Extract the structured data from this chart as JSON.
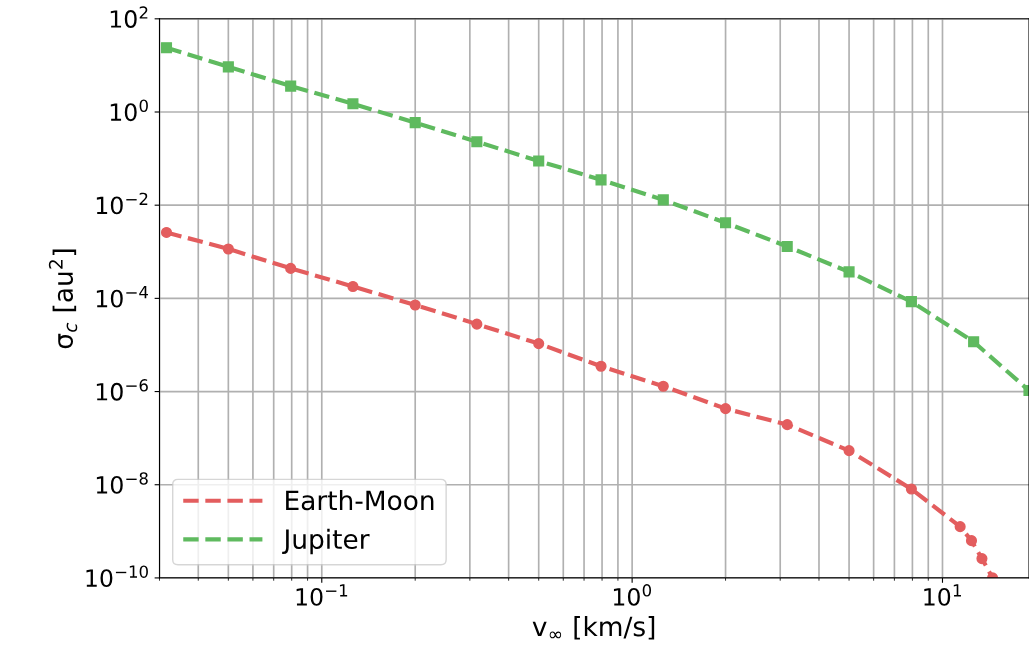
{
  "chart_data": {
    "type": "line",
    "xlabel": "v$_{∞}$ [km/s]",
    "ylabel": "σ$_{c}$ [au$^{2}$]",
    "log": "xy",
    "grid": true,
    "legend": "bottom left",
    "line_style": "dashed",
    "xlim": [
      0.03,
      19
    ],
    "ylim": [
      1e-10,
      100
    ],
    "xticks": [
      {
        "value": 0.1,
        "label": "10$^{−1}$"
      },
      {
        "value": 1,
        "label": "10$^{0}$"
      },
      {
        "value": 10,
        "label": "10$^{1}$"
      }
    ],
    "yticks": [
      {
        "value": 1e-10,
        "label": "10$^{−10}$"
      },
      {
        "value": 1e-08,
        "label": "10$^{−8}$"
      },
      {
        "value": 1e-06,
        "label": "10$^{−6}$"
      },
      {
        "value": 0.0001,
        "label": "10$^{−4}$"
      },
      {
        "value": 0.01,
        "label": "10$^{−2}$"
      },
      {
        "value": 1,
        "label": "10$^{0}$"
      },
      {
        "value": 100,
        "label": "10$^{2}$"
      }
    ],
    "series": [
      {
        "name": "Earth-Moon",
        "color": "#e35d5e",
        "marker": "circle",
        "x": [
          0.0316,
          0.05,
          0.0794,
          0.126,
          0.2,
          0.316,
          0.5,
          0.794,
          1.26,
          2,
          3.16,
          5,
          7.94,
          11.4,
          12.4,
          13.4,
          14.5
        ],
        "values": [
          0.0026,
          0.00115,
          0.00044,
          0.00018,
          7.2e-05,
          2.8e-05,
          1.07e-05,
          3.5e-06,
          1.3e-06,
          4.3e-07,
          1.95e-07,
          5.4e-08,
          8.1e-09,
          1.26e-09,
          6.3e-10,
          2.6e-10,
          1e-10
        ]
      },
      {
        "name": "Jupiter",
        "color": "#5fba5f",
        "marker": "square",
        "x": [
          0.0316,
          0.05,
          0.0794,
          0.126,
          0.2,
          0.316,
          0.5,
          0.794,
          1.26,
          2,
          3.16,
          5,
          7.94,
          12.6,
          19
        ],
        "values": [
          24,
          9.3,
          3.6,
          1.5,
          0.59,
          0.23,
          0.089,
          0.035,
          0.013,
          0.0042,
          0.0013,
          0.00037,
          8.5e-05,
          1.17e-05,
          1.05e-06
        ]
      }
    ]
  }
}
